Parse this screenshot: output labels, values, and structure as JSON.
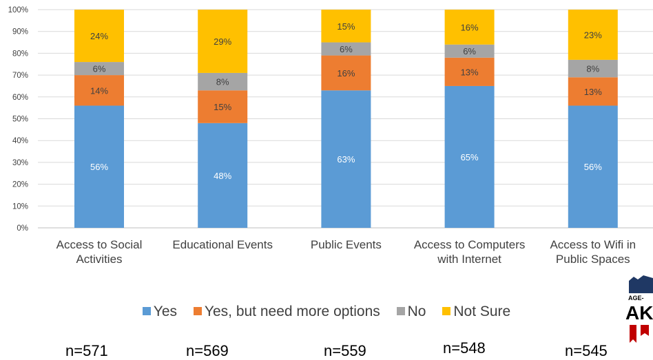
{
  "chart_data": {
    "type": "bar",
    "stacked": true,
    "categories": [
      [
        "Access to Social",
        "Activities"
      ],
      [
        "Educational Events"
      ],
      [
        "Public Events"
      ],
      [
        "Access to Computers",
        "with Internet"
      ],
      [
        "Access to Wifi in",
        "Public Spaces"
      ]
    ],
    "series": [
      {
        "name": "Yes",
        "color": "#5B9BD5",
        "values": [
          56,
          48,
          63,
          65,
          56
        ]
      },
      {
        "name": "Yes, but need more options",
        "color": "#ED7D31",
        "values": [
          14,
          15,
          16,
          13,
          13
        ]
      },
      {
        "name": "No",
        "color": "#A5A5A5",
        "values": [
          6,
          8,
          6,
          6,
          8
        ]
      },
      {
        "name": "Not Sure",
        "color": "#FFC000",
        "values": [
          24,
          29,
          15,
          16,
          23
        ]
      }
    ],
    "data_label_suffix": "%",
    "yticks": [
      "0%",
      "10%",
      "20%",
      "30%",
      "40%",
      "50%",
      "60%",
      "70%",
      "80%",
      "90%",
      "100%"
    ],
    "ylim": [
      0,
      100
    ],
    "grid": true,
    "legend_position": "bottom",
    "sample_sizes": [
      "n=571",
      "n=569",
      "n=559",
      "n=548",
      "n=545"
    ]
  },
  "logo": {
    "text": "AGE-",
    "letters": "AK"
  }
}
